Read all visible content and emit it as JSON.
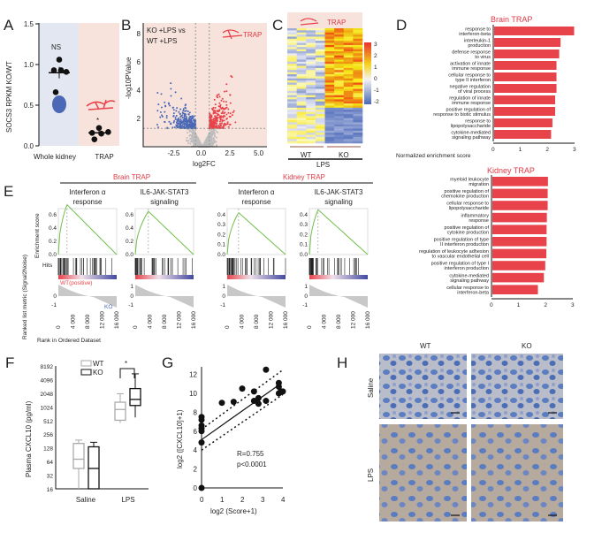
{
  "panel_labels": [
    "A",
    "B",
    "C",
    "D",
    "E",
    "F",
    "G",
    "H"
  ],
  "colors": {
    "red": "#e8434a",
    "blue": "#4a68b5",
    "grey": "#bdbdbd",
    "pink_bg": "#f7e3dc",
    "blue_bg": "#e3e7f1",
    "green": "#6fbf4a"
  },
  "chart_data": [
    {
      "id": "A",
      "type": "scatter",
      "ylabel": "SOCS3 RPKM KO/WT",
      "categories": [
        "Whole kidney",
        "TRAP"
      ],
      "yticks": [
        "0.0",
        "0.5",
        "1.0",
        "1.5"
      ],
      "ylim": [
        0,
        1.5
      ],
      "series": [
        {
          "name": "Whole kidney",
          "values": [
            1.06,
            0.93,
            0.91,
            0.93,
            0.66
          ],
          "mean": 0.9,
          "sem": 0.07,
          "annotation": "NS"
        },
        {
          "name": "TRAP",
          "values": [
            0.22,
            0.16,
            0.17,
            0.15,
            0.08
          ],
          "mean": 0.16,
          "sem": 0.03,
          "annotation": "*"
        }
      ]
    },
    {
      "id": "B",
      "type": "scatter",
      "title": "KO +LPS vs WT +LPS",
      "tag": "TRAP",
      "xlabel": "log2FC",
      "ylabel": "-log10PValue",
      "xticks": [
        "-2.5",
        "0.0",
        "2.5",
        "5.0"
      ],
      "yticks": [
        "2",
        "4",
        "6",
        "8"
      ],
      "xlim": [
        -5.1,
        5.6
      ],
      "ylim": [
        0,
        8.8
      ],
      "thresholds": {
        "log2fc": [
          -0.6,
          0.6
        ],
        "pvalue_line": 1.3
      },
      "groups": [
        {
          "name": "down",
          "color": "#4a68b5"
        },
        {
          "name": "up",
          "color": "#e8434a"
        },
        {
          "name": "ns",
          "color": "#bdbdbd"
        }
      ]
    },
    {
      "id": "C",
      "type": "heatmap",
      "tag": "TRAP",
      "columns": [
        "WT",
        "WT",
        "WT",
        "WT",
        "KO",
        "KO",
        "KO",
        "KO"
      ],
      "group_labels": [
        "WT",
        "KO"
      ],
      "condition": "LPS",
      "colorbar_ticks": [
        "3",
        "2",
        "1",
        "0",
        "-1",
        "-2"
      ]
    },
    {
      "id": "D1",
      "type": "bar",
      "title": "Brain TRAP",
      "xlabel": "Normalized enrichment score",
      "xticks": [
        "0",
        "1",
        "2",
        "3"
      ],
      "xlim": [
        0,
        3
      ],
      "categories": [
        "response to interferon-beta",
        "interleukin-1 production",
        "defense response to virus",
        "activation of innate immune response",
        "cellular response to type II interferon",
        "negative regulation of viral process",
        "regulation of innate immune response",
        "positive regulation of response to biotic stimulus",
        "response to lipopolysaccharide",
        "cytokine-mediated signaling pathway"
      ],
      "values": [
        2.95,
        2.45,
        2.4,
        2.3,
        2.3,
        2.3,
        2.25,
        2.25,
        2.15,
        2.1
      ]
    },
    {
      "id": "D2",
      "type": "bar",
      "title": "Kidney TRAP",
      "xticks": [
        "0",
        "1",
        "2",
        "3"
      ],
      "xlim": [
        0,
        3
      ],
      "categories": [
        "myeloid leukocyte migration",
        "positive regulation of chemokine production",
        "cellular response to lipopolysaccharide",
        "inflammatory response",
        "positive regulation of cytokine production",
        "positive regulation of type II interferon production",
        "regulation of leukocyte adhesion to vascular endothelial cell",
        "positive regulation of type I interferon production",
        "cytokine-mediated signaling pathway",
        "cellular response to interferon-beta"
      ],
      "values": [
        2.05,
        2.04,
        2.04,
        2.01,
        2.0,
        2.0,
        1.99,
        1.95,
        1.9,
        1.68
      ]
    },
    {
      "id": "E",
      "type": "line",
      "group_titles": [
        "Brain TRAP",
        "Kidney TRAP"
      ],
      "ylabel_es": "Enrichment score",
      "hits_label": "Hits",
      "ylabel_rank": "Ranked list metric (Signal2Noise)",
      "xlabel": "Rank in Ordered Dataset",
      "pos_label": "WT(positive)",
      "neg_label": "KO",
      "xticks": [
        "0",
        "4 000",
        "8 000",
        "12 000",
        "16 000"
      ],
      "plots": [
        {
          "title": [
            "Interferon α",
            "response"
          ],
          "yticks": [
            "0.0",
            "0.2",
            "0.4",
            "0.6"
          ],
          "ymax": 0.75,
          "peak_rank": 2500,
          "rank_ticks": [
            "0",
            "-1"
          ]
        },
        {
          "title": [
            "IL6-JAK-STAT3",
            "signaling"
          ],
          "yticks": [
            "0.0",
            "0.2",
            "0.4",
            "0.6"
          ],
          "ymax": 0.65,
          "peak_rank": 3800,
          "rank_ticks": [
            "1",
            "0",
            "-1"
          ]
        },
        {
          "title": [
            "Interferon α",
            "response"
          ],
          "yticks": [
            "0.0",
            "0.1",
            "0.2",
            "0.3",
            "0.4"
          ],
          "ymax": 0.42,
          "peak_rank": 3300,
          "rank_ticks": [
            "1",
            "0",
            "-1"
          ]
        },
        {
          "title": [
            "IL6-JAK-STAT3",
            "signaling"
          ],
          "yticks": [
            "0.0",
            "0.1",
            "0.2",
            "0.3",
            "0.4"
          ],
          "ymax": 0.45,
          "peak_rank": 2500,
          "rank_ticks": [
            "1",
            "0",
            "-1"
          ]
        }
      ]
    },
    {
      "id": "F",
      "type": "box",
      "ylabel": "Plasma CXCL10 (pg/ml)",
      "yticks": [
        "16",
        "32",
        "64",
        "128",
        "256",
        "512",
        "1024",
        "2048",
        "4096",
        "8192"
      ],
      "categories": [
        "Saline",
        "LPS"
      ],
      "legend": [
        "WT",
        "KO"
      ],
      "significance": "*",
      "series": [
        {
          "name": "WT",
          "color": "#aaaaaa",
          "boxes": [
            {
              "min": 16,
              "q1": 45,
              "median": 72,
              "q3": 160,
              "max": 190
            },
            {
              "min": 450,
              "q1": 520,
              "median": 900,
              "q3": 1300,
              "max": 2000
            }
          ]
        },
        {
          "name": "KO",
          "color": "#111111",
          "boxes": [
            {
              "min": 16,
              "q1": 16,
              "median": 45,
              "q3": 135,
              "max": 170
            },
            {
              "min": 600,
              "q1": 1100,
              "median": 1500,
              "q3": 2600,
              "max": 5500
            }
          ]
        }
      ]
    },
    {
      "id": "G",
      "type": "scatter",
      "xlabel": "log2 (Score+1)",
      "ylabel": "log2 ([CXCL10]+1)",
      "xticks": [
        "0",
        "1",
        "2",
        "3",
        "4"
      ],
      "yticks": [
        "0",
        "2",
        "4",
        "6",
        "8",
        "10",
        "12"
      ],
      "xlim": [
        0,
        4
      ],
      "ylim": [
        0,
        13
      ],
      "annotation": [
        "R=0.755",
        "p<0.0001"
      ],
      "points": [
        [
          0,
          0
        ],
        [
          0,
          4.8
        ],
        [
          0,
          6.0
        ],
        [
          0,
          6.3
        ],
        [
          0,
          6.6
        ],
        [
          0,
          7.2
        ],
        [
          0,
          7.5
        ],
        [
          1,
          9.0
        ],
        [
          1.58,
          9.1
        ],
        [
          2,
          10.5
        ],
        [
          2.58,
          10.2
        ],
        [
          2.58,
          9.2
        ],
        [
          2.8,
          9.5
        ],
        [
          2.8,
          8.9
        ],
        [
          3.17,
          12.5
        ],
        [
          3.17,
          9.2
        ],
        [
          3.8,
          11.1
        ],
        [
          3.8,
          10.7
        ],
        [
          3.9,
          10.2
        ],
        [
          3.8,
          10.0
        ],
        [
          4,
          10.2
        ]
      ],
      "fit": {
        "intercept": 5.1,
        "slope": 1.52
      }
    }
  ],
  "H": {
    "columns": [
      "WT",
      "KO"
    ],
    "rows": [
      "Saline",
      "LPS"
    ]
  }
}
